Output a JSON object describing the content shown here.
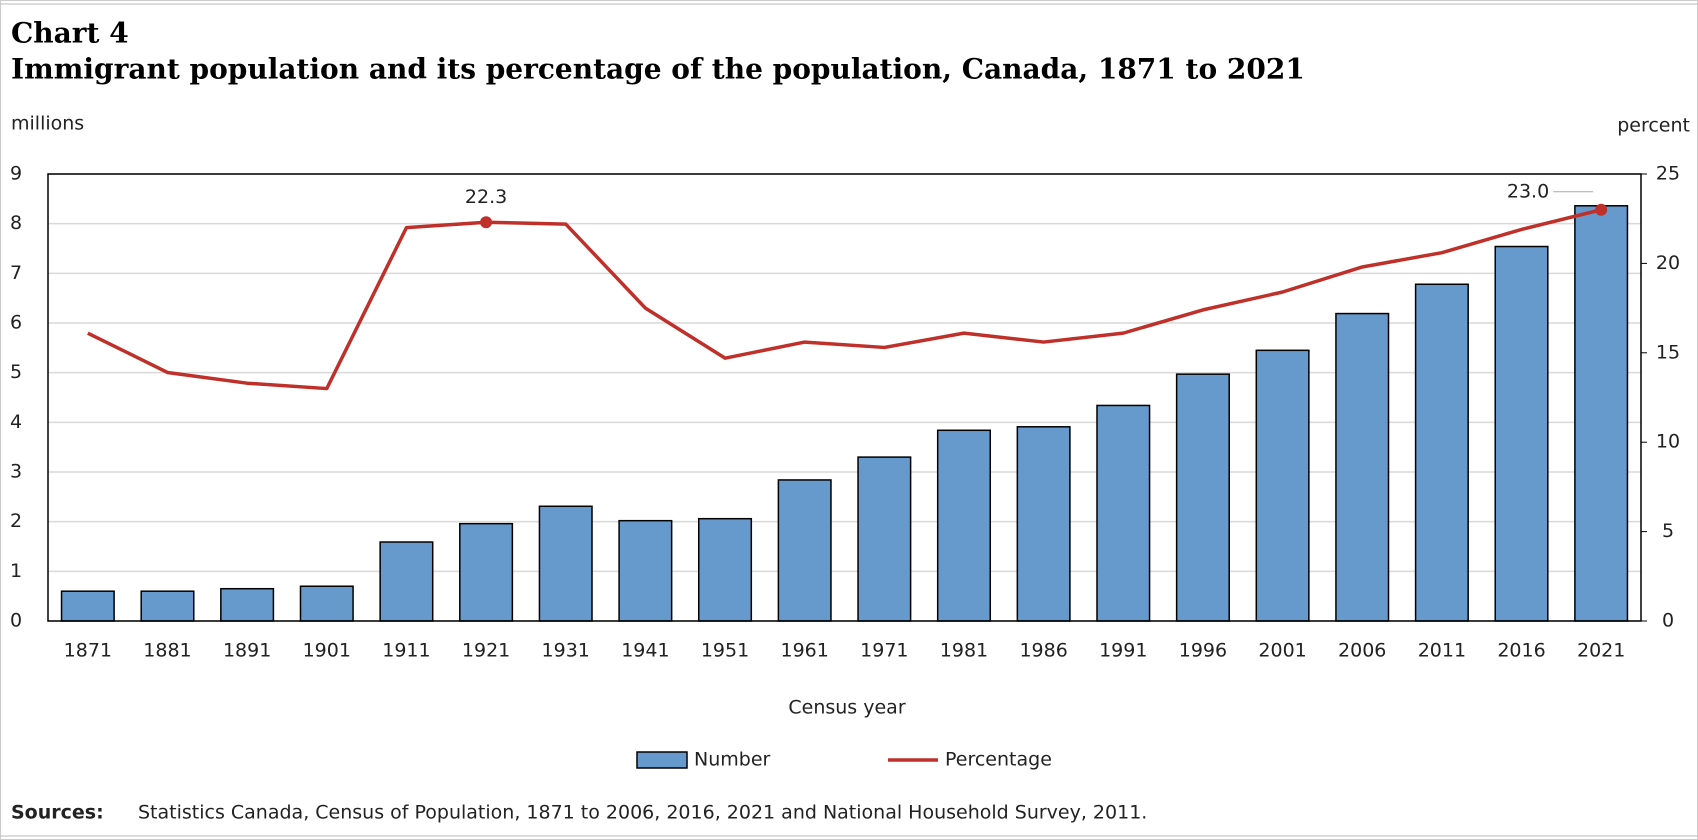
{
  "chart_data": {
    "type": "bar",
    "chart_label": "Chart 4",
    "title": "Immigrant population and its percentage of the population, Canada, 1871 to 2021",
    "y_label": "millions",
    "y2_label": "percent",
    "x_label": "Census year",
    "categories": [
      "1871",
      "1881",
      "1891",
      "1901",
      "1911",
      "1921",
      "1931",
      "1941",
      "1951",
      "1961",
      "1971",
      "1981",
      "1986",
      "1991",
      "1996",
      "2001",
      "2006",
      "2011",
      "2016",
      "2021"
    ],
    "series": [
      {
        "name": "Number",
        "color": "#6699cc",
        "values": [
          0.6,
          0.6,
          0.65,
          0.7,
          1.59,
          1.96,
          2.31,
          2.02,
          2.06,
          2.84,
          3.3,
          3.84,
          3.91,
          4.34,
          4.97,
          5.45,
          6.19,
          6.78,
          7.54,
          8.36
        ]
      },
      {
        "name": "Percentage",
        "type": "line",
        "axis": "y2",
        "color": "#c0302a",
        "values": [
          16.1,
          13.9,
          13.3,
          13.0,
          22.0,
          22.3,
          22.2,
          17.5,
          14.7,
          15.6,
          15.3,
          16.1,
          15.6,
          16.1,
          17.4,
          18.4,
          19.8,
          20.6,
          21.9,
          23.0
        ],
        "value_labels": [
          null,
          null,
          null,
          null,
          null,
          "22.3",
          null,
          null,
          null,
          null,
          null,
          null,
          null,
          null,
          null,
          null,
          null,
          null,
          null,
          "23.0"
        ]
      }
    ],
    "ylim": [
      0,
      9
    ],
    "yticks": [
      0,
      1,
      2,
      3,
      4,
      5,
      6,
      7,
      8,
      9
    ],
    "y2lim": [
      0,
      25
    ],
    "y2ticks": [
      0,
      5,
      10,
      15,
      20,
      25
    ],
    "grid": true,
    "sources_label": "Sources:",
    "sources": "Statistics Canada, Census of Population, 1871 to 2006, 2016, 2021 and National Household Survey, 2011."
  }
}
